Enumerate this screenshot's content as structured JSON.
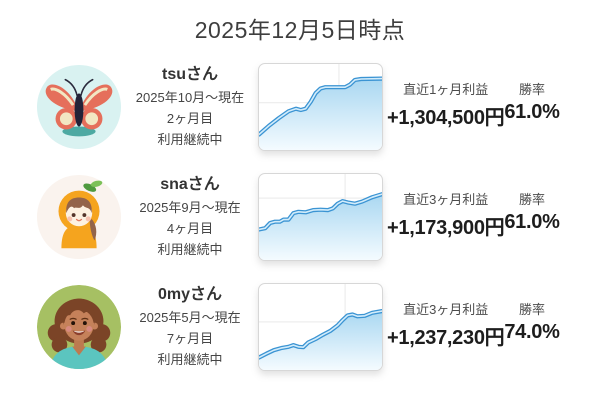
{
  "title": "2025年12月5日時点",
  "rows": [
    {
      "name": "tsuさん",
      "period": "2025年10月〜現在",
      "duration": "2ヶ月目",
      "status": "利用継続中",
      "profit_label": "直近1ヶ月利益",
      "winrate_label": "勝率",
      "profit_value": "+1,304,500円",
      "winrate_value": "61.0%",
      "avatar_icon": "butterfly-avatar-icon"
    },
    {
      "name": "snaさん",
      "period": "2025年9月〜現在",
      "duration": "4ヶ月目",
      "status": "利用継続中",
      "profit_label": "直近3ヶ月利益",
      "winrate_label": "勝率",
      "profit_value": "+1,173,900円",
      "winrate_value": "61.0%",
      "avatar_icon": "orange-girl-avatar-icon"
    },
    {
      "name": "0myさん",
      "period": "2025年5月〜現在",
      "duration": "7ヶ月目",
      "status": "利用継続中",
      "profit_label": "直近3ヶ月利益",
      "winrate_label": "勝率",
      "profit_value": "+1,237,230円",
      "winrate_value": "74.0%",
      "avatar_icon": "woman-avatar-icon"
    }
  ],
  "chart_style": {
    "line": "#3b94d3",
    "line_core": "#d2ecfb",
    "fill_top": "#a9d7f1",
    "fill_bottom": "#f4fbff",
    "grid": "#e9e9e9",
    "border": "#d7d7d7"
  },
  "chart_data": [
    {
      "type": "area",
      "series_name": "tsu-cumulative-profit-sparkline",
      "axes_visible": false,
      "x_range": [
        0,
        100
      ],
      "y_range": [
        0,
        100
      ],
      "x": [
        0,
        8,
        16,
        24,
        30,
        34,
        38,
        42,
        46,
        50,
        54,
        70,
        74,
        78,
        83,
        100
      ],
      "y": [
        18,
        28,
        37,
        45,
        48,
        46.5,
        48,
        56,
        66,
        71.5,
        73,
        73,
        76,
        81.5,
        82.5,
        83
      ],
      "gridlines": {
        "h": [
          45
        ],
        "v": [
          65
        ]
      }
    },
    {
      "type": "area",
      "series_name": "sna-cumulative-profit-sparkline",
      "axes_visible": false,
      "x_range": [
        0,
        100
      ],
      "y_range": [
        0,
        100
      ],
      "x": [
        0,
        5,
        9,
        13,
        17,
        20,
        24,
        28,
        32,
        38,
        44,
        50,
        56,
        60,
        64,
        68,
        72,
        78,
        84,
        92,
        100
      ],
      "y": [
        35.5,
        37,
        43,
        44.5,
        44.5,
        47,
        47,
        54.5,
        56,
        55.5,
        58,
        58.5,
        58,
        60,
        65.5,
        68.5,
        67,
        65.5,
        68,
        73,
        76.5
      ],
      "gridlines": {
        "h": [
          28,
          68
        ],
        "v": [
          70
        ]
      }
    },
    {
      "type": "area",
      "series_name": "0my-cumulative-profit-sparkline",
      "axes_visible": false,
      "x_range": [
        0,
        100
      ],
      "y_range": [
        0,
        100
      ],
      "x": [
        0,
        6,
        12,
        18,
        24,
        28,
        32,
        36,
        40,
        46,
        52,
        58,
        64,
        68,
        72,
        76,
        80,
        86,
        92,
        100
      ],
      "y": [
        14.5,
        19,
        23,
        25.5,
        27,
        29,
        27,
        26.5,
        32,
        36,
        41,
        45.5,
        52,
        58,
        63.5,
        64.5,
        62.5,
        63,
        66.5,
        68.5
      ],
      "gridlines": {
        "h": [
          44
        ],
        "v": [
          70
        ]
      }
    }
  ]
}
